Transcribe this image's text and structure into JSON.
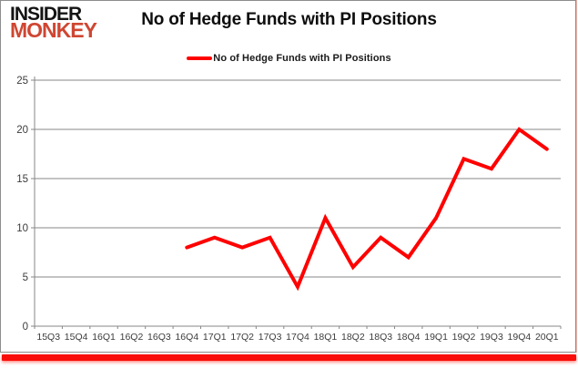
{
  "brand": {
    "line1": "INSIDER",
    "line2": "MONKEY",
    "monkey_color": "#cf4632"
  },
  "header": {
    "title": "No of Hedge Funds with PI Positions"
  },
  "legend": {
    "label": "No of Hedge Funds with PI Positions",
    "line_color": "#ff0000"
  },
  "chart_data": {
    "type": "line",
    "title": "No of Hedge Funds with PI Positions",
    "categories": [
      "15Q3",
      "15Q4",
      "16Q1",
      "16Q2",
      "16Q3",
      "16Q4",
      "17Q1",
      "17Q2",
      "17Q3",
      "17Q4",
      "18Q1",
      "18Q2",
      "18Q3",
      "18Q4",
      "19Q1",
      "19Q2",
      "19Q3",
      "19Q4",
      "20Q1"
    ],
    "series": [
      {
        "name": "No of Hedge Funds with PI Positions",
        "color": "#ff0000",
        "values": [
          null,
          null,
          null,
          null,
          null,
          8,
          9,
          8,
          9,
          4,
          11,
          6,
          9,
          7,
          11,
          17,
          16,
          20,
          18
        ]
      }
    ],
    "xlabel": "",
    "ylabel": "",
    "ylim": [
      0,
      25
    ],
    "yticks": [
      0,
      5,
      10,
      15,
      20,
      25
    ],
    "grid": true,
    "legend_position": "top",
    "grid_color": "#878787",
    "axis_color": "#878787",
    "tick_label_color": "#3c3c3c",
    "line_width": 4
  },
  "colors": {
    "accent_red": "#f90d0a",
    "frame_gray": "#8d8d8d"
  }
}
